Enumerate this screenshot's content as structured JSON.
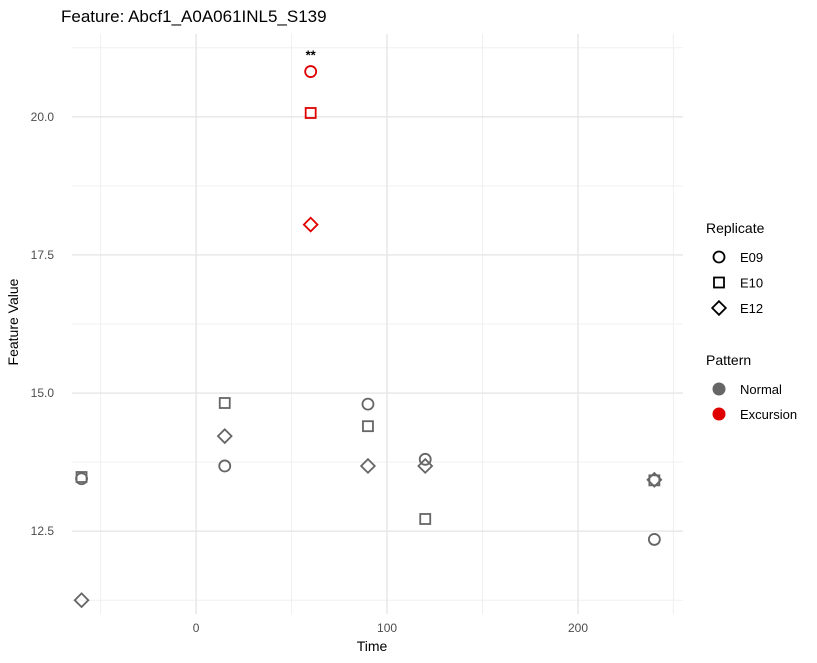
{
  "chart_data": {
    "type": "scatter",
    "title": "Feature: Abcf1_A0A061INL5_S139",
    "xlabel": "Time",
    "ylabel": "Feature Value",
    "xlim": [
      -65,
      255
    ],
    "ylim": [
      11.0,
      21.5
    ],
    "x_ticks": [
      0,
      100,
      200
    ],
    "y_ticks": [
      12.5,
      15.0,
      17.5,
      20.0
    ],
    "y_tick_labels": [
      "12.5",
      "15.0",
      "17.5",
      "20.0"
    ],
    "grid": true,
    "legend_position": "right",
    "legends": [
      {
        "title": "Replicate",
        "entries": [
          {
            "label": "E09",
            "shape": "circle"
          },
          {
            "label": "E10",
            "shape": "square"
          },
          {
            "label": "E12",
            "shape": "diamond"
          }
        ]
      },
      {
        "title": "Pattern",
        "entries": [
          {
            "label": "Normal",
            "color": "#666666"
          },
          {
            "label": "Excursion",
            "color": "#e00000"
          }
        ]
      }
    ],
    "points": [
      {
        "x": -60,
        "y": 13.45,
        "replicate": "E09",
        "pattern": "Normal"
      },
      {
        "x": -60,
        "y": 13.48,
        "replicate": "E10",
        "pattern": "Normal"
      },
      {
        "x": -60,
        "y": 11.25,
        "replicate": "E12",
        "pattern": "Normal"
      },
      {
        "x": 15,
        "y": 13.68,
        "replicate": "E09",
        "pattern": "Normal"
      },
      {
        "x": 15,
        "y": 14.82,
        "replicate": "E10",
        "pattern": "Normal"
      },
      {
        "x": 15,
        "y": 14.22,
        "replicate": "E12",
        "pattern": "Normal"
      },
      {
        "x": 60,
        "y": 20.82,
        "replicate": "E09",
        "pattern": "Excursion"
      },
      {
        "x": 60,
        "y": 20.07,
        "replicate": "E10",
        "pattern": "Excursion"
      },
      {
        "x": 60,
        "y": 18.05,
        "replicate": "E12",
        "pattern": "Excursion"
      },
      {
        "x": 90,
        "y": 14.8,
        "replicate": "E09",
        "pattern": "Normal"
      },
      {
        "x": 90,
        "y": 14.4,
        "replicate": "E10",
        "pattern": "Normal"
      },
      {
        "x": 90,
        "y": 13.68,
        "replicate": "E12",
        "pattern": "Normal"
      },
      {
        "x": 120,
        "y": 13.8,
        "replicate": "E09",
        "pattern": "Normal"
      },
      {
        "x": 120,
        "y": 12.72,
        "replicate": "E10",
        "pattern": "Normal"
      },
      {
        "x": 120,
        "y": 13.68,
        "replicate": "E12",
        "pattern": "Normal"
      },
      {
        "x": 240,
        "y": 12.35,
        "replicate": "E09",
        "pattern": "Normal"
      },
      {
        "x": 240,
        "y": 13.42,
        "replicate": "E10",
        "pattern": "Normal"
      },
      {
        "x": 240,
        "y": 13.43,
        "replicate": "E12",
        "pattern": "Normal"
      }
    ],
    "annotations": [
      {
        "x": 60,
        "y": 20.82,
        "text": "**"
      }
    ]
  }
}
